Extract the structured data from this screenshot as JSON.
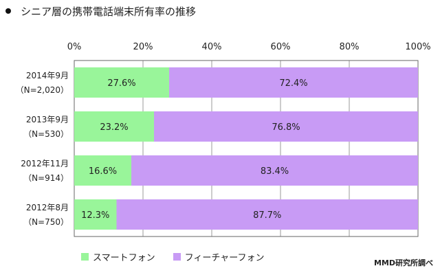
{
  "header": {
    "title": "シニア層の携帯電話端末所有率の推移"
  },
  "source": "MMD研究所調べ",
  "colors": {
    "smartphone": "#99f59a",
    "feature_phone": "#c89bf5",
    "grid": "#999999",
    "frame": "#666666"
  },
  "chart_data": {
    "type": "bar",
    "orientation": "horizontal",
    "stacked": true,
    "title": "シニア層の携帯電話端末所有率の推移",
    "categories": [
      [
        "2014年9月",
        "（N=2,020）"
      ],
      [
        "2013年9月",
        "（N=530）"
      ],
      [
        "2012年11月",
        "（N=914）"
      ],
      [
        "2012年8月",
        "（N=750）"
      ]
    ],
    "series": [
      {
        "name": "スマートフォン",
        "values": [
          27.6,
          23.2,
          16.6,
          12.3
        ],
        "labels": [
          "27.6%",
          "23.2%",
          "16.6%",
          "12.3%"
        ]
      },
      {
        "name": "フィーチャーフォン",
        "values": [
          72.4,
          76.8,
          83.4,
          87.7
        ],
        "labels": [
          "72.4%",
          "76.8%",
          "83.4%",
          "87.7%"
        ]
      }
    ],
    "xlim": [
      0,
      100
    ],
    "xticks": [
      "0%",
      "20%",
      "40%",
      "60%",
      "80%",
      "100%"
    ],
    "grid": true,
    "legend": "bottom-left"
  }
}
